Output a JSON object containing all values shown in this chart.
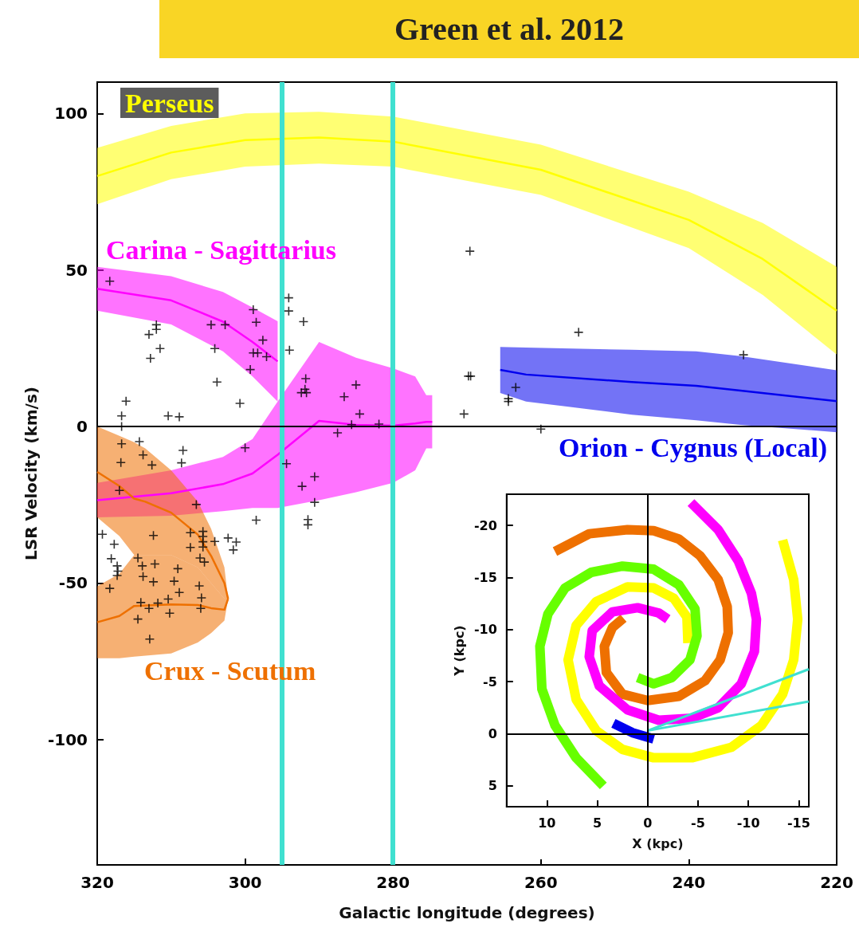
{
  "chart_data": [
    {
      "type": "scatter",
      "title": "Green et al. 2012",
      "xlabel": "Galactic longitude (degrees)",
      "ylabel": "LSR Velocity (km/s)",
      "xlim": [
        320,
        220
      ],
      "xticks": [
        320,
        300,
        280,
        260,
        240,
        220
      ],
      "ylim": [
        -140,
        110
      ],
      "yticks": [
        -100,
        -50,
        0,
        50,
        100
      ],
      "series": [
        {
          "type": "line",
          "name": "Perseus",
          "color": "#ffff00",
          "x": [
            320,
            310,
            300,
            290,
            280,
            260,
            240,
            230,
            220
          ],
          "values": [
            80,
            87.5,
            91.5,
            92.3,
            91,
            82,
            66,
            53.5,
            37
          ],
          "upper": [
            89,
            96,
            100,
            100.5,
            99,
            90,
            75,
            65,
            51
          ],
          "lower": [
            71,
            79,
            83,
            84,
            83,
            74,
            57,
            42,
            23
          ]
        },
        {
          "type": "line",
          "name": "Carina - Sagittarius",
          "color": "#ff00ff",
          "x": [
            320,
            310,
            303,
            299,
            295.6
          ],
          "values": [
            44,
            40.3,
            33.5,
            27,
            20.8
          ],
          "upper": [
            51,
            48,
            43,
            38,
            33.6
          ],
          "lower": [
            37,
            32.6,
            24,
            16,
            8
          ]
        },
        {
          "type": "line",
          "color": "#ff00ff",
          "x": [
            320,
            310,
            303,
            299,
            295.6,
            290,
            285,
            280,
            277,
            275.5,
            274.7
          ],
          "values": [
            -23.5,
            -21.3,
            -18.4,
            -15,
            -9,
            1.8,
            0.5,
            0.3,
            1,
            1.5,
            1.5
          ],
          "upper": [
            -18,
            -14,
            -9.7,
            -4,
            8,
            27,
            22,
            18.6,
            16,
            10,
            10
          ],
          "lower": [
            -29,
            -28.5,
            -27,
            -26,
            -26,
            -23.5,
            -21,
            -18,
            -14,
            -7,
            -7
          ]
        },
        {
          "type": "line",
          "name": "Crux - Scutum",
          "color": "#ee7000",
          "x": [
            320,
            317,
            315,
            313.5,
            310,
            306.4,
            304.6,
            302.8,
            302.3
          ],
          "values": [
            -14.5,
            -19,
            -23,
            -24,
            -27.5,
            -34.5,
            -41.3,
            -50,
            -55
          ],
          "upper": [
            0,
            -3,
            -5,
            -7,
            -14,
            -24,
            -32.6,
            -45,
            -55
          ],
          "lower": [
            -29,
            -35,
            -41,
            -41,
            -41,
            -45,
            -50,
            -55,
            -55
          ]
        },
        {
          "type": "line",
          "color": "#ee7000",
          "x": [
            320,
            317,
            315,
            310,
            306.4,
            304.6,
            302.8,
            302.3
          ],
          "values": [
            -62.5,
            -60.5,
            -57.3,
            -56.8,
            -57,
            -58,
            -58.5,
            -55
          ],
          "upper": [
            -51,
            -47,
            -41,
            -41,
            -45,
            -50,
            -55,
            -55
          ],
          "lower": [
            -74,
            -74,
            -73.5,
            -72.5,
            -69,
            -66,
            -62,
            -55
          ]
        },
        {
          "type": "line",
          "name": "Orion - Cygnus (Local)",
          "color": "#0000ee",
          "x": [
            265.5,
            262,
            247.7,
            239,
            233,
            220
          ],
          "values": [
            18.1,
            16.6,
            14.2,
            13,
            11.5,
            8.1
          ],
          "upper": [
            25.4,
            25.2,
            24.5,
            24,
            22.5,
            18
          ],
          "lower": [
            10.7,
            8,
            3.8,
            2,
            0.5,
            -1.8
          ]
        },
        {
          "color": "#000000",
          "marker": "cross",
          "x": [
            318.3,
            312.0,
            312.0,
            313.0,
            311.5,
            312.8,
            303.8,
            316.1,
            316.7,
            310.4,
            308.9,
            300.7,
            304.6,
            302.7,
            298.9,
            298.5,
            297.6,
            304.1,
            298.9,
            298.3,
            297.1,
            299.3,
            294.1,
            294.1,
            292.1,
            294.0,
            291.8,
            291.9,
            292.4,
            291.7,
            285.0,
            286.6,
            284.5,
            285.6,
            281.9,
            287.5,
            300.0,
            294.4,
            290.6,
            292.3,
            290.6,
            298.5,
            291.5,
            291.5,
            270.4,
            269.8,
            269.5,
            316.7,
            316.7,
            314.3,
            316.8,
            313.8,
            312.6,
            308.4,
            308.6,
            317.0,
            306.6,
            319.3,
            317.7,
            318.1,
            317.3,
            317.2,
            317.3,
            318.3,
            312.4,
            314.5,
            313.9,
            312.2,
            313.8,
            309.1,
            312.4,
            309.6,
            307.4,
            305.7,
            305.7,
            305.7,
            305.7,
            307.4,
            304.1,
            302.3,
            301.2,
            301.6,
            306.1,
            305.5,
            306.2,
            305.9,
            306.0,
            308.9,
            310.4,
            311.8,
            314.1,
            313.0,
            310.2,
            314.5,
            312.9,
            269.6,
            254.9,
            263.4,
            264.4,
            264.4,
            260.0,
            232.6
          ],
          "values": [
            46.4,
            32.5,
            31,
            29.4,
            24.9,
            21.8,
            14.2,
            8.1,
            3.4,
            3.4,
            3.1,
            7.4,
            32.5,
            32.5,
            37.3,
            33.3,
            27.6,
            24.9,
            23.5,
            23.5,
            22.3,
            18.2,
            41.1,
            36.9,
            33.5,
            24.4,
            15.3,
            11.9,
            10.8,
            10.8,
            13.3,
            9.5,
            4.0,
            0.6,
            0.8,
            -2.0,
            -6.8,
            -11.9,
            -16.0,
            -19.1,
            -24.2,
            -29.9,
            -29.7,
            -31.4,
            4.0,
            16.1,
            16.1,
            0,
            -5.5,
            -4.8,
            -11.5,
            -9.1,
            -12.3,
            -7.6,
            -11.6,
            -20.4,
            -24.9,
            -34.4,
            -37.6,
            -42.2,
            -44.5,
            -46.2,
            -47.6,
            -51.7,
            -34.8,
            -42,
            -44.5,
            -43.9,
            -47.9,
            -45.4,
            -49.6,
            -49.4,
            -33.9,
            -33.5,
            -35.1,
            -36.8,
            -38.5,
            -38.6,
            -36.7,
            -35.6,
            -36.9,
            -39.4,
            -42,
            -43.3,
            -50.9,
            -54.7,
            -58.1,
            -53.0,
            -55.1,
            -56.4,
            -56.2,
            -58.1,
            -59.6,
            -61.5,
            -67.9,
            56.0,
            30.1,
            12.5,
            8.9,
            8.0,
            -0.8,
            22.9
          ]
        }
      ],
      "ref_lines": [
        {
          "axis": "x",
          "value": 295,
          "color": "#40e0d0"
        },
        {
          "axis": "x",
          "value": 280,
          "color": "#40e0d0"
        },
        {
          "axis": "y",
          "value": 0
        }
      ]
    },
    {
      "type": "line",
      "xlabel": "X (kpc)",
      "ylabel": "Y (kpc)",
      "xlim": [
        14,
        -16
      ],
      "xticks": [
        10,
        5,
        0,
        -5,
        -10,
        -15
      ],
      "ylim": [
        7,
        -23
      ],
      "yticks": [
        5,
        0,
        -5,
        -10,
        -15,
        -20
      ],
      "marker": "none",
      "series": [
        {
          "color": "#ee7000",
          "x": [
            9.2,
            5.8,
            2,
            -0.6,
            -3.1,
            -5.2,
            -7,
            -7.9,
            -8,
            -7.2,
            -5.7,
            -3.1,
            0,
            2.5,
            4.1,
            4.3,
            3.5,
            2.4
          ],
          "values": [
            -17.5,
            -19.2,
            -19.6,
            -19.5,
            -18.7,
            -17.1,
            -14.8,
            -12.2,
            -9.7,
            -7.1,
            -5.1,
            -3.6,
            -3.2,
            -3.8,
            -5.9,
            -8.4,
            -10.2,
            -11.1
          ]
        },
        {
          "color": "#ff00ff",
          "x": [
            -4.3,
            -7,
            -9,
            -10.3,
            -10.8,
            -10.6,
            -9.3,
            -7,
            -4.4,
            -1.1,
            2,
            4.8,
            5.8,
            5.5,
            3.5,
            1,
            -1.1,
            -2
          ],
          "values": [
            -22.2,
            -19.6,
            -16.6,
            -13.5,
            -11,
            -7.9,
            -4.8,
            -2.5,
            -1.5,
            -1.3,
            -2.3,
            -4.6,
            -7.4,
            -9.9,
            -11.7,
            -12.1,
            -11.6,
            -11
          ]
        },
        {
          "color": "#ffff00",
          "x": [
            -13.4,
            -14.5,
            -14.9,
            -14.5,
            -13.4,
            -11.3,
            -8.3,
            -4.4,
            -0.6,
            2.5,
            5.1,
            7.1,
            7.9,
            7.1,
            5.1,
            2,
            -0.6,
            -2.6,
            -3.9,
            -4
          ],
          "values": [
            -18.6,
            -14.8,
            -11,
            -7.1,
            -3.8,
            -0.8,
            1.3,
            2.3,
            2.3,
            1.5,
            -0.3,
            -3.3,
            -7.1,
            -10.4,
            -12.7,
            -14.1,
            -14,
            -13,
            -11.2,
            -8.7
          ]
        },
        {
          "color": "#66ff00",
          "x": [
            4.4,
            7.1,
            9.2,
            10.5,
            10.7,
            9.9,
            8.2,
            5.6,
            2.5,
            -0.6,
            -3.1,
            -4.7,
            -4.9,
            -4.2,
            -2.4,
            -0.6,
            1
          ],
          "values": [
            5,
            2.3,
            -0.8,
            -4.3,
            -8.4,
            -11.5,
            -14,
            -15.5,
            -16.1,
            -15.8,
            -14.3,
            -12,
            -9.4,
            -7.1,
            -5.4,
            -4.8,
            -5.4
          ]
        },
        {
          "color": "#0000ee",
          "x": [
            3.4,
            1.5,
            -0.6
          ],
          "values": [
            -1,
            -0.1,
            0.5
          ]
        },
        {
          "color": "#40e0d0",
          "x": [
            0,
            -16
          ],
          "values": [
            -0.3,
            -6.2
          ]
        },
        {
          "color": "#40e0d0",
          "x": [
            0,
            -16
          ],
          "values": [
            -0.3,
            -3.1
          ]
        }
      ],
      "ref_lines": [
        {
          "axis": "x",
          "value": 0
        },
        {
          "axis": "y",
          "value": 0
        }
      ]
    }
  ]
}
